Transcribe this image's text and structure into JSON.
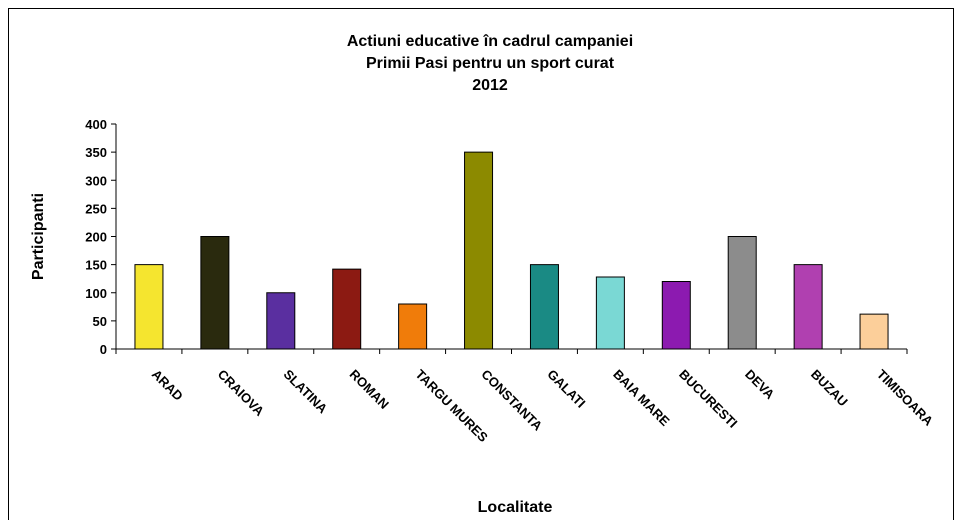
{
  "chart_data": {
    "type": "bar",
    "title_lines": [
      "Actiuni educative în cadrul campaniei",
      "Primii Pasi pentru un sport curat",
      "2012"
    ],
    "xlabel": "Localitate",
    "ylabel": "Participanti",
    "ylim": [
      0,
      400
    ],
    "yticks": [
      0,
      50,
      100,
      150,
      200,
      250,
      300,
      350,
      400
    ],
    "grid": false,
    "legend": "none",
    "categories": [
      "ARAD",
      "CRAIOVA",
      "SLATINA",
      "ROMAN",
      "TARGU MURES",
      "CONSTANTA",
      "GALATI",
      "BAIA MARE",
      "BUCURESTI",
      "DEVA",
      "BUZAU",
      "TIMISOARA"
    ],
    "values": [
      150,
      200,
      100,
      142,
      80,
      350,
      150,
      128,
      120,
      200,
      150,
      62
    ],
    "colors": [
      "#f5e52f",
      "#2a2a0e",
      "#5a2fa0",
      "#8c1a12",
      "#f07c0a",
      "#8c8a00",
      "#1a8a84",
      "#7ad8d4",
      "#8c1ab0",
      "#8c8c8c",
      "#b040b0",
      "#fccf9a"
    ]
  }
}
